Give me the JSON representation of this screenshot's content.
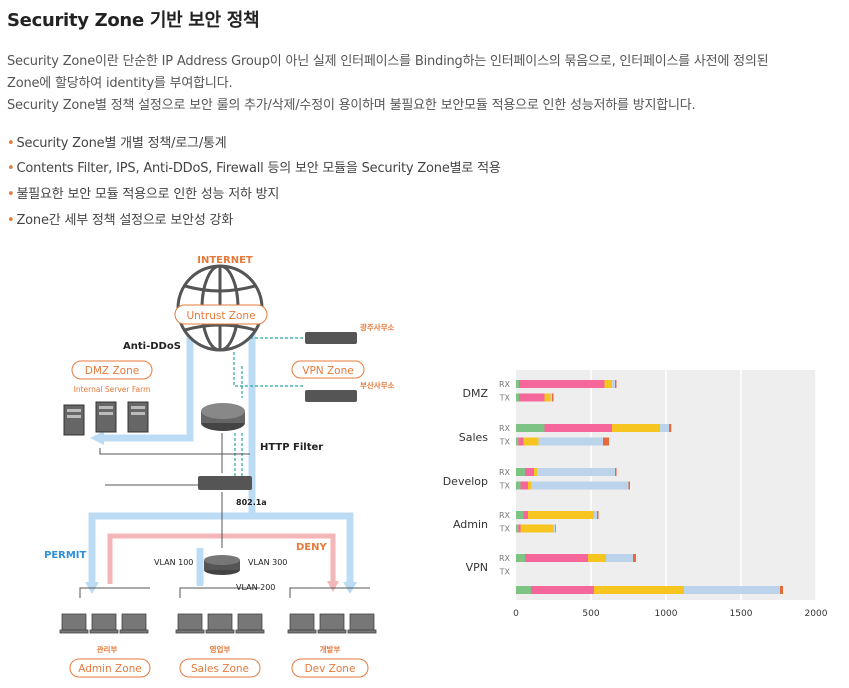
{
  "title": "Security Zone 기반 보안 정책",
  "description": [
    "Security Zone이란 단순한 IP Address Group이 아닌 실제 인터페이스를 Binding하는 인터페이스의 묶음으로, 인터페이스를 사전에 정의된",
    "Zone에 할당하여 identity를 부여합니다.",
    "Security Zone별 정책 설정으로 보안 룰의 추가/삭제/수정이 용이하며 불필요한 보안모듈 적용으로 인한 성능저하를 방지합니다."
  ],
  "bullets": [
    "Security Zone별 개별 정책/로그/통계",
    "Contents Filter, IPS, Anti-DDoS, Firewall 등의 보안 모듈을 Security Zone별로 적용",
    "불필요한 보안 모듈 적용으로 인한 성능 저하 방지",
    "Zone간 세부 정책 설정으로 보안성 강화"
  ],
  "bullet_marker": "•",
  "diagram": {
    "internet": "INTERNET",
    "untrust_zone": "Untrust Zone",
    "anti_ddos": "Anti-DDoS",
    "dmz_zone": "DMZ Zone",
    "internal_server_farm": "Internal Server Farm",
    "vpn_zone": "VPN Zone",
    "branch1": "광주사무소",
    "branch2": "부산사무소",
    "http_filter": "HTTP Filter",
    "dot1a": "802.1a",
    "permit": "PERMIT",
    "deny": "DENY",
    "vlan100": "VLAN 100",
    "vlan200": "VLAN 200",
    "vlan300": "VLAN 300",
    "dept_admin": "관리부",
    "dept_sales": "영업부",
    "dept_dev": "개발부",
    "admin_zone": "Admin Zone",
    "sales_zone": "Sales Zone",
    "dev_zone": "Dev Zone",
    "colors": {
      "orange": "#e67a3c",
      "blue": "#bcdcf5",
      "pink": "#f4b6b6",
      "permit_blue": "#2f8fd8",
      "teal": "#2aa6a0"
    }
  },
  "chart_data": {
    "type": "bar",
    "orientation": "horizontal-stacked",
    "xlim": [
      0,
      2000
    ],
    "xticks": [
      "0",
      "500",
      "1000",
      "1500",
      "2000"
    ],
    "segment_colors": [
      "#7dc383",
      "#f5679a",
      "#f7c520",
      "#bcd3ec",
      "#e86a3a"
    ],
    "groups": [
      {
        "name": "DMZ",
        "rows": [
          {
            "label": "RX",
            "values": [
              20,
              570,
              50,
              20,
              10
            ]
          },
          {
            "label": "TX",
            "values": [
              20,
              170,
              40,
              10,
              10
            ]
          }
        ]
      },
      {
        "name": "Sales",
        "rows": [
          {
            "label": "RX",
            "values": [
              190,
              450,
              320,
              60,
              15
            ]
          },
          {
            "label": "TX",
            "values": [
              15,
              35,
              100,
              430,
              40
            ]
          }
        ]
      },
      {
        "name": "Develop",
        "rows": [
          {
            "label": "RX",
            "values": [
              60,
              60,
              20,
              520,
              10
            ]
          },
          {
            "label": "TX",
            "values": [
              30,
              50,
              20,
              650,
              10
            ]
          }
        ]
      },
      {
        "name": "Admin",
        "rows": [
          {
            "label": "RX",
            "values": [
              50,
              30,
              440,
              20,
              10
            ]
          },
          {
            "label": "TX",
            "values": [
              15,
              15,
              220,
              10,
              5
            ]
          }
        ]
      },
      {
        "name": "VPN",
        "rows": [
          {
            "label": "RX",
            "values": [
              60,
              420,
              120,
              180,
              20
            ]
          },
          {
            "label": "TX",
            "values": []
          },
          {
            "label": "",
            "values": [
              100,
              420,
              600,
              640,
              20
            ]
          }
        ]
      }
    ]
  }
}
